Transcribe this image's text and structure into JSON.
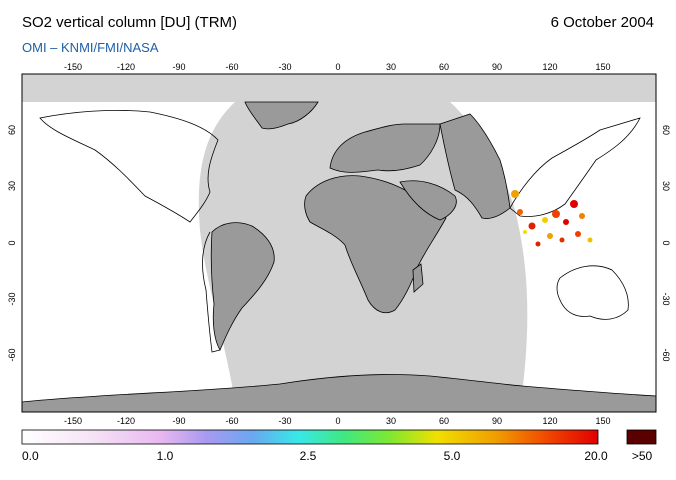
{
  "header": {
    "title": "SO2 vertical column [DU] (TRM)",
    "date": "6 October 2004",
    "source": "OMI  –  KNMI/FMI/NASA"
  },
  "map": {
    "projection": "equirectangular",
    "lon_ticks": [
      "-150",
      "-120",
      "-90",
      "-60",
      "-30",
      "0",
      "30",
      "60",
      "90",
      "120",
      "150"
    ],
    "lat_ticks": [
      "60",
      "30",
      "0",
      "-30",
      "-60"
    ],
    "colors": {
      "no_data": "#d3d3d3",
      "night": "#a0a0a0",
      "land": "#999999",
      "background": "#ffffff"
    }
  },
  "colorbar": {
    "labels": [
      "0.0",
      "1.0",
      "2.5",
      "5.0",
      "20.0"
    ],
    "overflow_label": ">50",
    "overflow_color": "#5a0000",
    "stops": [
      "#ffffff",
      "#f7e6f7",
      "#e8b8f0",
      "#a89af0",
      "#6aa8f0",
      "#38e8e8",
      "#40e880",
      "#80e830",
      "#f0e000",
      "#f0a000",
      "#f04000",
      "#e00000"
    ]
  }
}
